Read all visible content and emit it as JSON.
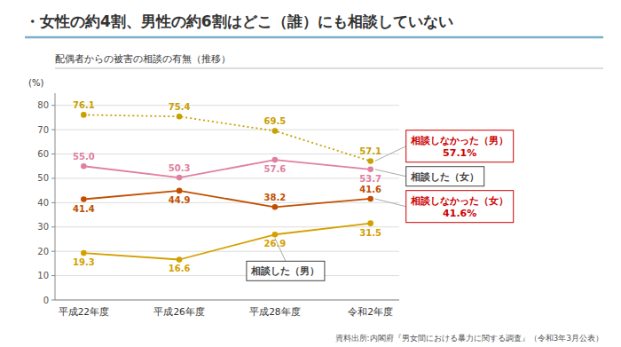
{
  "chart_data": {
    "type": "line",
    "title": "・女性の約4割、男性の約6割はどこ（誰）にも相談していない",
    "subtitle": "配偶者からの被害の相談の有無（推移）",
    "ylabel": "(%)",
    "source": "資料出所:内閣府『男女間における暴力に関する調査』（令和3年3月公表）",
    "categories": [
      "平成22年度",
      "平成26年度",
      "平成28年度",
      "令和2年度"
    ],
    "series": [
      {
        "color": "#c8a000",
        "line_style": "dotted",
        "marker": "circle",
        "values": [
          76.1,
          75.4,
          69.5,
          57.1
        ]
      },
      {
        "color": "#e080a0",
        "line_style": "solid",
        "marker": "circle",
        "values": [
          55.0,
          50.3,
          57.6,
          53.7
        ],
        "value_labels": [
          "55.0",
          "50.3",
          "57.6",
          "53.7"
        ]
      },
      {
        "color": "#c05000",
        "line_style": "solid",
        "marker": "circle",
        "values": [
          41.4,
          44.9,
          38.2,
          41.6
        ]
      },
      {
        "color": "#d4a000",
        "line_style": "solid",
        "marker": "circle",
        "values": [
          19.3,
          16.6,
          26.9,
          31.5
        ]
      }
    ],
    "ylim": [
      0,
      85
    ],
    "yticks": [
      0,
      10,
      20,
      30,
      40,
      50,
      60,
      70,
      80
    ],
    "grid": true,
    "data_labels": true,
    "annotations": [
      {
        "text": "相談しなかった（男）\n57.1%",
        "x": "令和2年度",
        "y": 57.1,
        "color": "#cc0000"
      },
      {
        "text": "相談した（女）",
        "x": "令和2年度",
        "y": 53.7,
        "color": "#444444"
      },
      {
        "text": "相談しなかった（女）\n41.6%",
        "x": "令和2年度",
        "y": 41.6,
        "color": "#cc0000"
      },
      {
        "text": "相談した（男）",
        "x": "平成28年度",
        "y": 26.9,
        "color": "#444444"
      }
    ]
  }
}
